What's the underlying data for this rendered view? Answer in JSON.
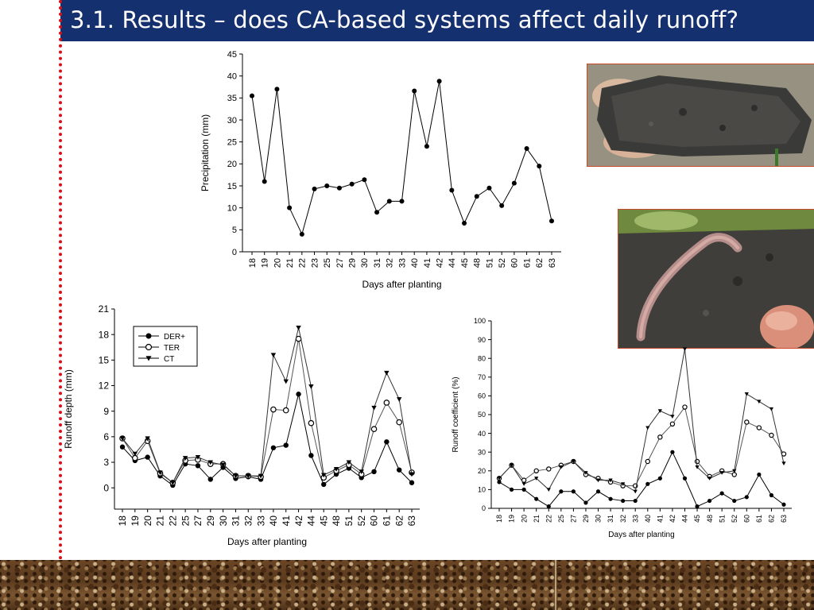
{
  "title": "3.1. Results – does CA-based systems affect daily runoff?",
  "photos": {
    "soil_block": "soil-block-photo",
    "earthworm": "earthworm-in-soil-photo"
  },
  "colors": {
    "title_bg": "#14306e",
    "dotted_line": "#d8101a",
    "photo_border": "#c94a2a"
  },
  "chart_data": [
    {
      "id": "precip",
      "type": "line",
      "xlabel": "Days after planting",
      "ylabel": "Precipitation (mm)",
      "ylim": [
        0,
        45
      ],
      "yticks": [
        0,
        5,
        10,
        15,
        20,
        25,
        30,
        35,
        40,
        45
      ],
      "categories": [
        "18",
        "19",
        "20",
        "21",
        "22",
        "23",
        "25",
        "27",
        "29",
        "30",
        "31",
        "32",
        "33",
        "40",
        "41",
        "42",
        "44",
        "45",
        "48",
        "51",
        "52",
        "60",
        "61",
        "62",
        "63"
      ],
      "series": [
        {
          "values": [
            35.5,
            16,
            37,
            10,
            4,
            14.3,
            15,
            14.5,
            15.4,
            16.4,
            9,
            11.5,
            11.5,
            36.6,
            24,
            38.8,
            14,
            6.5,
            12.6,
            14.5,
            10.5,
            15.6,
            23.5,
            19.5,
            7
          ]
        }
      ]
    },
    {
      "id": "runoff_depth",
      "type": "line",
      "xlabel": "Days after planting",
      "ylabel": "Runoff depth (mm)",
      "ylim": [
        -2.5,
        21
      ],
      "yticks": [
        0,
        3,
        6,
        9,
        12,
        15,
        18,
        21
      ],
      "legend_position": "top-left",
      "categories": [
        "18",
        "19",
        "20",
        "21",
        "22",
        "25",
        "27",
        "29",
        "30",
        "31",
        "32",
        "33",
        "40",
        "41",
        "42",
        "44",
        "45",
        "48",
        "51",
        "52",
        "60",
        "61",
        "62",
        "63"
      ],
      "series": [
        {
          "name": "DER+",
          "marker": "filled-circle",
          "values": [
            4.8,
            3.2,
            3.6,
            1.4,
            0.3,
            2.8,
            2.6,
            1.0,
            2.4,
            1.1,
            1.3,
            1.0,
            4.7,
            5.0,
            11.0,
            3.8,
            0.4,
            1.6,
            2.3,
            1.2,
            1.9,
            5.4,
            2.1,
            0.6
          ]
        },
        {
          "name": "TER",
          "marker": "open-circle",
          "values": [
            5.8,
            3.5,
            5.5,
            1.7,
            0.6,
            3.2,
            3.3,
            2.8,
            2.8,
            1.4,
            1.4,
            1.3,
            9.2,
            9.1,
            17.5,
            7.6,
            1.2,
            2.0,
            2.7,
            1.6,
            6.9,
            10.0,
            7.7,
            1.8
          ]
        },
        {
          "name": "CT",
          "marker": "filled-triangle-down",
          "values": [
            5.8,
            4.0,
            5.8,
            1.8,
            0.6,
            3.5,
            3.6,
            3.0,
            2.7,
            1.4,
            1.4,
            1.4,
            15.6,
            12.5,
            18.8,
            11.9,
            1.5,
            2.2,
            3.0,
            1.9,
            9.4,
            13.5,
            10.4,
            1.6
          ]
        }
      ]
    },
    {
      "id": "runoff_coeff",
      "type": "line",
      "xlabel": "Days after planting",
      "ylabel": "Runoff coefficient (%)",
      "ylim": [
        0,
        100
      ],
      "yticks": [
        0,
        10,
        20,
        30,
        40,
        50,
        60,
        70,
        80,
        90,
        100
      ],
      "categories": [
        "18",
        "19",
        "20",
        "21",
        "22",
        "25",
        "27",
        "29",
        "30",
        "31",
        "32",
        "33",
        "40",
        "41",
        "42",
        "44",
        "45",
        "48",
        "51",
        "52",
        "60",
        "61",
        "62",
        "63"
      ],
      "series": [
        {
          "name": "DER+",
          "marker": "filled-circle",
          "values": [
            14,
            10,
            10,
            5,
            1,
            9,
            9,
            3,
            9,
            5,
            4,
            4,
            13,
            16,
            30,
            16,
            1,
            4,
            8,
            4,
            6,
            18,
            7,
            2
          ]
        },
        {
          "name": "TER",
          "marker": "open-circle",
          "values": [
            16,
            23,
            15,
            20,
            21,
            23,
            25,
            18,
            16,
            14,
            12,
            12,
            25,
            38,
            45,
            54,
            25,
            17,
            20,
            18,
            46,
            43,
            39,
            29
          ]
        },
        {
          "name": "CT",
          "marker": "filled-triangle-down",
          "values": [
            16,
            23,
            13,
            16,
            10,
            22,
            25,
            19,
            15,
            15,
            13,
            9,
            43,
            52,
            49,
            85,
            22,
            16,
            19,
            20,
            61,
            57,
            53,
            24
          ]
        }
      ]
    }
  ]
}
